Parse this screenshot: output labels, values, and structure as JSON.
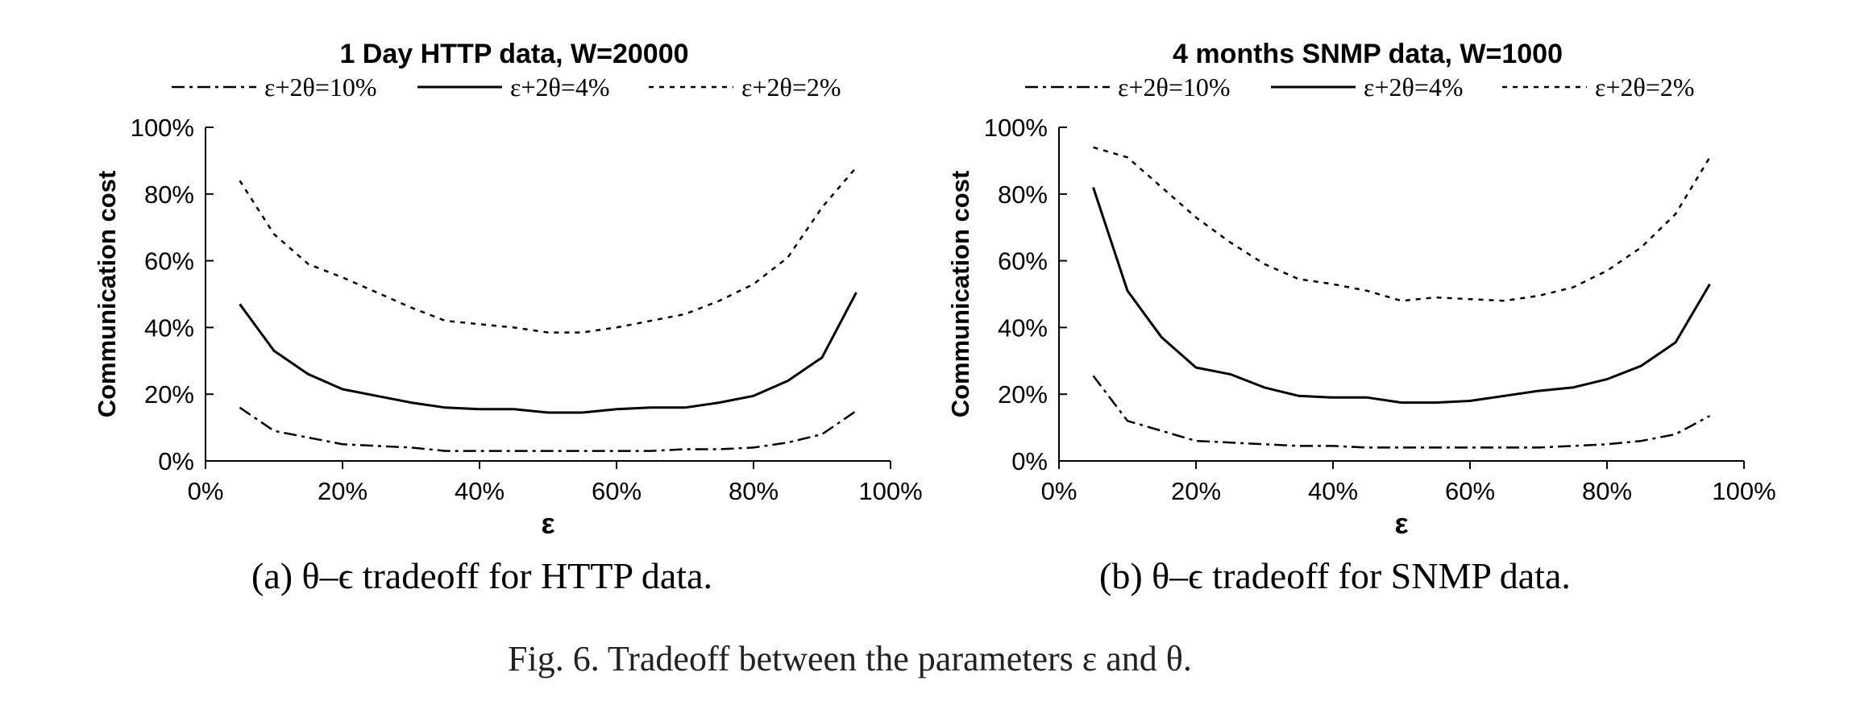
{
  "figure_caption": "Fig. 6.   Tradeoff between the parameters ε and θ.",
  "chart_data": [
    {
      "type": "line",
      "title": "1 Day HTTP data, W=20000",
      "xlabel": "ε",
      "ylabel": "Communication cost",
      "caption": "(a)  θ–ϵ tradeoff for HTTP data.",
      "xlim": [
        0,
        100
      ],
      "ylim": [
        0,
        100
      ],
      "x_ticks": [
        "0%",
        "20%",
        "40%",
        "60%",
        "80%",
        "100%"
      ],
      "y_ticks": [
        "0%",
        "20%",
        "40%",
        "60%",
        "80%",
        "100%"
      ],
      "legend_position": "top",
      "grid": false,
      "x": [
        5,
        10,
        15,
        20,
        25,
        30,
        35,
        40,
        45,
        50,
        55,
        60,
        65,
        70,
        75,
        80,
        85,
        90,
        95
      ],
      "series": [
        {
          "name": "ε+2θ=10%",
          "style": "dashdot",
          "values": [
            16,
            9,
            7,
            5,
            4.5,
            4,
            3,
            3,
            3,
            3,
            3,
            3,
            3,
            3.5,
            3.5,
            4,
            5.5,
            8,
            15
          ]
        },
        {
          "name": "ε+2θ=4%",
          "style": "solid",
          "values": [
            47,
            33,
            26,
            21.5,
            19.5,
            17.5,
            16,
            15.5,
            15.5,
            14.5,
            14.5,
            15.5,
            16,
            16,
            17.5,
            19.5,
            24,
            31,
            50.5
          ]
        },
        {
          "name": "ε+2θ=2%",
          "style": "dotted",
          "values": [
            84,
            68,
            59,
            55,
            50.5,
            46,
            42,
            41,
            40,
            38.5,
            38.5,
            40,
            42,
            44,
            48,
            53,
            61,
            76,
            88
          ]
        }
      ]
    },
    {
      "type": "line",
      "title": "4 months SNMP data, W=1000",
      "xlabel": "ε",
      "ylabel": "Communication cost",
      "caption": "(b)  θ–ϵ tradeoff for SNMP data.",
      "xlim": [
        0,
        100
      ],
      "ylim": [
        0,
        100
      ],
      "x_ticks": [
        "0%",
        "20%",
        "40%",
        "60%",
        "80%",
        "100%"
      ],
      "y_ticks": [
        "0%",
        "20%",
        "40%",
        "60%",
        "80%",
        "100%"
      ],
      "legend_position": "top",
      "grid": false,
      "x": [
        5,
        10,
        15,
        20,
        25,
        30,
        35,
        40,
        45,
        50,
        55,
        60,
        65,
        70,
        75,
        80,
        85,
        90,
        95
      ],
      "series": [
        {
          "name": "ε+2θ=10%",
          "style": "dashdot",
          "values": [
            25.5,
            12,
            9,
            6,
            5.5,
            5,
            4.5,
            4.5,
            4,
            4,
            4,
            4,
            4,
            4,
            4.5,
            5,
            6,
            8,
            13.5
          ]
        },
        {
          "name": "ε+2θ=4%",
          "style": "solid",
          "values": [
            82,
            51,
            37,
            28,
            26,
            22,
            19.5,
            19,
            19,
            17.5,
            17.5,
            18,
            19.5,
            21,
            22,
            24.5,
            28.5,
            35.5,
            53
          ]
        },
        {
          "name": "ε+2θ=2%",
          "style": "dotted",
          "values": [
            94,
            91,
            82,
            73,
            65.5,
            59,
            54.5,
            53,
            51,
            48,
            49,
            48.5,
            48,
            49.5,
            52,
            57,
            64,
            74,
            91
          ]
        }
      ]
    }
  ]
}
